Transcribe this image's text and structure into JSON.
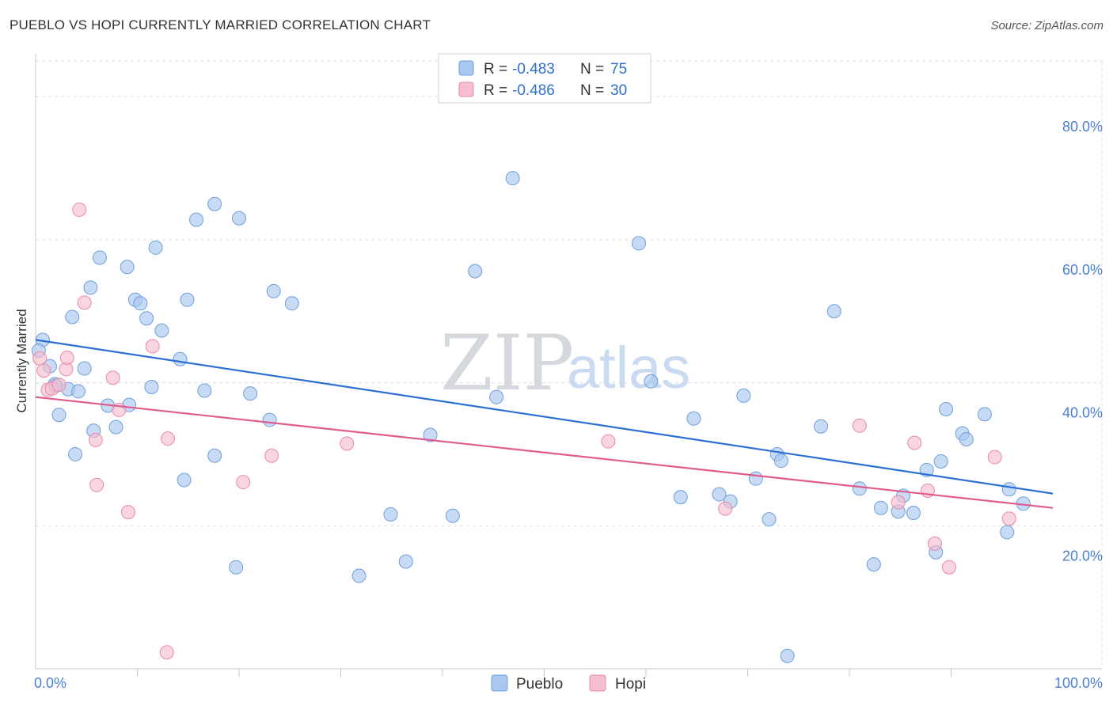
{
  "header": {
    "title": "PUEBLO VS HOPI CURRENTLY MARRIED CORRELATION CHART",
    "source": "Source: ZipAtlas.com"
  },
  "watermark": {
    "zip": "ZIP",
    "atlas": "atlas"
  },
  "colors": {
    "pueblo_fill": "#a9c8ef",
    "pueblo_stroke": "#6f9fdc",
    "pueblo_line": "#2b6fd4",
    "hopi_fill": "#f6bfd0",
    "hopi_stroke": "#e98aa8",
    "hopi_line": "#e05c8f",
    "grid": "#dcdcdc",
    "tick_text": "#4a7fd1"
  },
  "legend": {
    "rows": [
      {
        "r_label": "R =",
        "r_value": "-0.483",
        "n_label": "N =",
        "n_value": "75"
      },
      {
        "r_label": "R =",
        "r_value": "-0.486",
        "n_label": "N =",
        "n_value": "30"
      }
    ]
  },
  "chart_data": {
    "type": "scatter",
    "title": "PUEBLO VS HOPI CURRENTLY MARRIED CORRELATION CHART",
    "xlabel": "",
    "ylabel": "Currently Married",
    "xlim": [
      0,
      100
    ],
    "ylim": [
      0,
      85
    ],
    "x_tick_labels": [
      "0.0%",
      "100.0%"
    ],
    "y_ticks": [
      20,
      40,
      60,
      80
    ],
    "y_tick_labels": [
      "20.0%",
      "40.0%",
      "60.0%",
      "80.0%"
    ],
    "grid": true,
    "legend_position": "top-center",
    "series": [
      {
        "name": "Pueblo",
        "trend": [
          [
            0,
            46.0
          ],
          [
            100,
            24.5
          ]
        ],
        "points": [
          [
            0.7,
            46.0
          ],
          [
            1.4,
            42.3
          ],
          [
            1.9,
            39.8
          ],
          [
            2.3,
            35.5
          ],
          [
            3.2,
            39.1
          ],
          [
            3.6,
            49.2
          ],
          [
            3.9,
            30.0
          ],
          [
            4.2,
            38.8
          ],
          [
            4.8,
            42.0
          ],
          [
            5.4,
            53.3
          ],
          [
            5.7,
            33.3
          ],
          [
            6.3,
            57.5
          ],
          [
            7.1,
            36.8
          ],
          [
            7.9,
            33.8
          ],
          [
            9.0,
            56.2
          ],
          [
            9.2,
            36.9
          ],
          [
            9.8,
            51.6
          ],
          [
            10.3,
            51.1
          ],
          [
            10.9,
            49.0
          ],
          [
            11.4,
            39.4
          ],
          [
            11.8,
            58.9
          ],
          [
            12.4,
            47.3
          ],
          [
            14.2,
            43.3
          ],
          [
            14.6,
            26.4
          ],
          [
            14.9,
            51.6
          ],
          [
            15.8,
            62.8
          ],
          [
            16.6,
            38.9
          ],
          [
            17.6,
            65.0
          ],
          [
            17.6,
            29.8
          ],
          [
            19.7,
            14.2
          ],
          [
            20.0,
            63.0
          ],
          [
            21.1,
            38.5
          ],
          [
            23.0,
            34.8
          ],
          [
            23.4,
            52.8
          ],
          [
            25.2,
            51.1
          ],
          [
            31.8,
            13.0
          ],
          [
            34.9,
            21.6
          ],
          [
            36.4,
            15.0
          ],
          [
            38.8,
            32.7
          ],
          [
            41.0,
            21.4
          ],
          [
            43.2,
            55.6
          ],
          [
            45.3,
            38.0
          ],
          [
            46.9,
            68.6
          ],
          [
            59.3,
            59.5
          ],
          [
            60.5,
            40.2
          ],
          [
            63.4,
            24.0
          ],
          [
            64.7,
            35.0
          ],
          [
            67.2,
            24.4
          ],
          [
            68.3,
            23.4
          ],
          [
            69.6,
            38.2
          ],
          [
            70.8,
            26.6
          ],
          [
            72.1,
            20.9
          ],
          [
            72.9,
            30.0
          ],
          [
            73.3,
            29.1
          ],
          [
            73.9,
            1.8
          ],
          [
            77.2,
            33.9
          ],
          [
            78.5,
            50.0
          ],
          [
            81.0,
            25.2
          ],
          [
            82.4,
            14.6
          ],
          [
            83.1,
            22.5
          ],
          [
            84.8,
            22.0
          ],
          [
            85.3,
            24.2
          ],
          [
            86.3,
            21.8
          ],
          [
            87.6,
            27.8
          ],
          [
            88.5,
            16.3
          ],
          [
            89.0,
            29.0
          ],
          [
            89.5,
            36.3
          ],
          [
            91.1,
            32.9
          ],
          [
            91.5,
            32.1
          ],
          [
            93.3,
            35.6
          ],
          [
            95.5,
            19.1
          ],
          [
            95.7,
            25.1
          ],
          [
            97.1,
            23.1
          ],
          [
            0.3,
            44.5
          ],
          [
            2.0,
            39.6
          ]
        ]
      },
      {
        "name": "Hopi",
        "trend": [
          [
            0,
            38.0
          ],
          [
            100,
            22.5
          ]
        ],
        "points": [
          [
            0.4,
            43.4
          ],
          [
            0.8,
            41.7
          ],
          [
            1.2,
            39.0
          ],
          [
            1.6,
            39.2
          ],
          [
            2.3,
            39.7
          ],
          [
            3.0,
            41.9
          ],
          [
            3.1,
            43.5
          ],
          [
            4.3,
            64.2
          ],
          [
            4.8,
            51.2
          ],
          [
            5.9,
            32.0
          ],
          [
            6.0,
            25.7
          ],
          [
            7.6,
            40.7
          ],
          [
            8.2,
            36.2
          ],
          [
            9.1,
            21.9
          ],
          [
            11.5,
            45.1
          ],
          [
            12.9,
            2.3
          ],
          [
            13.0,
            32.2
          ],
          [
            20.4,
            26.1
          ],
          [
            23.2,
            29.8
          ],
          [
            30.6,
            31.5
          ],
          [
            56.3,
            31.8
          ],
          [
            67.8,
            22.4
          ],
          [
            81.0,
            34.0
          ],
          [
            84.8,
            23.3
          ],
          [
            86.4,
            31.6
          ],
          [
            87.7,
            24.9
          ],
          [
            88.4,
            17.5
          ],
          [
            89.8,
            14.2
          ],
          [
            94.3,
            29.6
          ],
          [
            95.7,
            21.0
          ]
        ]
      }
    ]
  },
  "bottom_legend": [
    {
      "label": "Pueblo"
    },
    {
      "label": "Hopi"
    }
  ]
}
